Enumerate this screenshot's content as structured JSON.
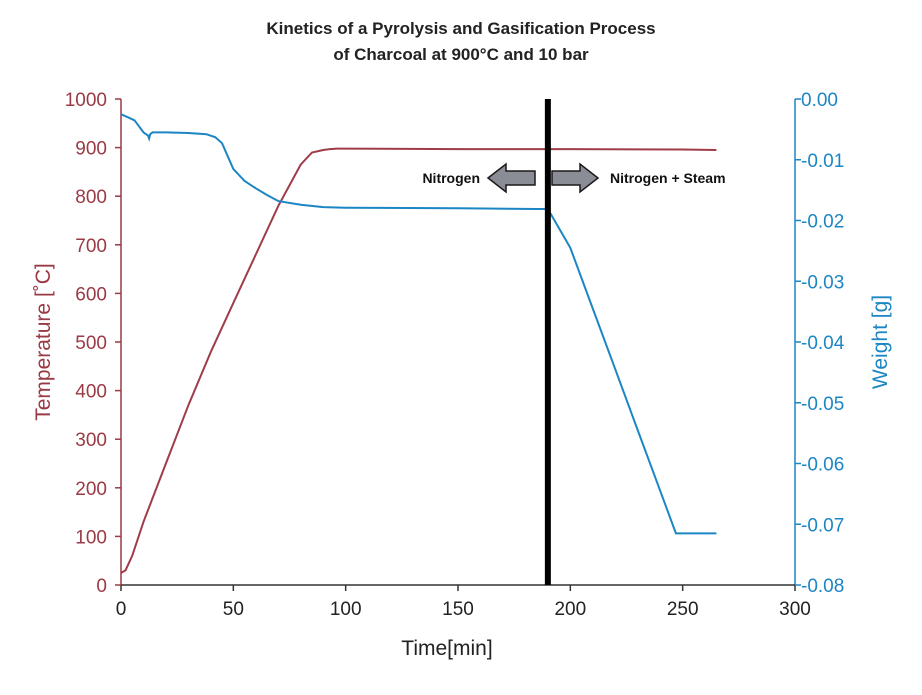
{
  "chart_data": {
    "type": "line",
    "title": "Kinetics of a Pyrolysis and Gasification Process",
    "subtitle": "of Charcoal at 900°C and 10 bar",
    "xlabel": "Time[min]",
    "ylabel_left": "Temperature [˚C]",
    "ylabel_right": "Weight [g]",
    "xlim": [
      0,
      300
    ],
    "ylim_left": [
      0,
      1000
    ],
    "ylim_right": [
      -0.08,
      0.0
    ],
    "x_ticks": [
      "0",
      "50",
      "100",
      "150",
      "200",
      "250",
      "300"
    ],
    "y_left_ticks": [
      "0",
      "100",
      "200",
      "300",
      "400",
      "500",
      "600",
      "700",
      "800",
      "900",
      "1000"
    ],
    "y_right_ticks": [
      "0.00",
      "-0.01",
      "-0.02",
      "-0.03",
      "-0.04",
      "-0.05",
      "-0.06",
      "-0.07",
      "-0.08"
    ],
    "grid": false,
    "series": [
      {
        "axis": "left",
        "color": "#9e3c47",
        "x": [
          0,
          2,
          5,
          10,
          20,
          30,
          40,
          50,
          60,
          70,
          80,
          85,
          90,
          93,
          96,
          100,
          150,
          200,
          250,
          265
        ],
        "values": [
          25,
          30,
          60,
          130,
          250,
          370,
          480,
          580,
          680,
          780,
          865,
          890,
          895,
          897,
          898,
          898,
          897,
          897,
          896,
          895
        ]
      },
      {
        "axis": "right",
        "color": "#1c86c4",
        "x": [
          0,
          3,
          6,
          8,
          10,
          12,
          12.5,
          13,
          14,
          20,
          30,
          38,
          42,
          45,
          47,
          50,
          55,
          60,
          65,
          70,
          80,
          90,
          100,
          150,
          185,
          190,
          200,
          210,
          220,
          230,
          240,
          247,
          255,
          265
        ],
        "values": [
          -0.0025,
          -0.003,
          -0.0035,
          -0.0045,
          -0.0055,
          -0.006,
          -0.0065,
          -0.0058,
          -0.0055,
          -0.0055,
          -0.0056,
          -0.0058,
          -0.0063,
          -0.0073,
          -0.009,
          -0.0115,
          -0.0135,
          -0.0147,
          -0.0158,
          -0.0168,
          -0.0174,
          -0.0178,
          -0.0179,
          -0.018,
          -0.0181,
          -0.0181,
          -0.0245,
          -0.0345,
          -0.0445,
          -0.0545,
          -0.0645,
          -0.0715,
          -0.0715,
          -0.0715
        ]
      }
    ],
    "annotations": {
      "vline_x": 190,
      "left_label": "Nitrogen",
      "right_label": "Nitrogen + Steam"
    }
  }
}
